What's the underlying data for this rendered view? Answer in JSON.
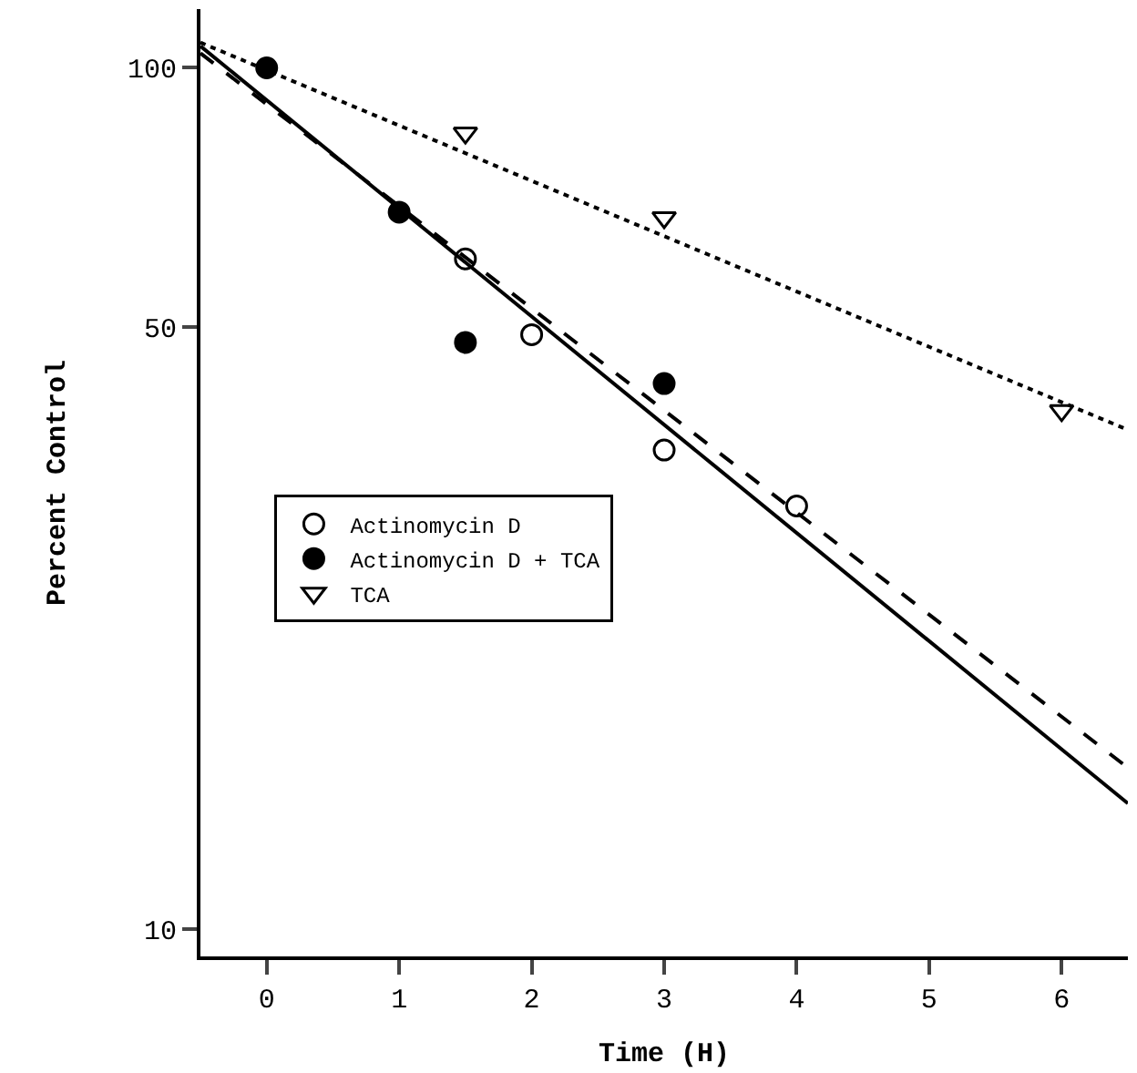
{
  "chart_data": {
    "type": "scatter",
    "xlabel": "Time (H)",
    "ylabel": "Percent Control",
    "log": "y",
    "xlim": [
      -0.5,
      6.5
    ],
    "xticks": [
      0,
      1,
      2,
      3,
      4,
      5,
      6
    ],
    "ylim": [
      9.3,
      117
    ],
    "yticks": [
      10,
      50,
      100
    ],
    "legend": "left",
    "series": [
      {
        "name": "Actinomycin D",
        "color": "#000000",
        "marker": "circle-open",
        "x": [
          1.5,
          2,
          3,
          4
        ],
        "values": [
          60,
          49,
          36,
          31
        ]
      },
      {
        "name": "Actinomycin D + TCA",
        "color": "#000000",
        "marker": "circle",
        "x": [
          0,
          1,
          1.5,
          3
        ],
        "values": [
          100,
          68,
          48,
          43
        ]
      },
      {
        "name": "TCA",
        "color": "#000000",
        "marker": "triangle-down-open",
        "x": [
          1.5,
          3,
          6
        ],
        "values": [
          84,
          67,
          40
        ]
      },
      {
        "type": "line",
        "color": "#000000",
        "line_style": "solid",
        "x": [
          -0.5,
          6.5
        ],
        "values": [
          106,
          14
        ]
      },
      {
        "type": "line",
        "color": "#000000",
        "line_style": "dashed",
        "x": [
          -0.5,
          6.5
        ],
        "values": [
          104,
          15.4
        ]
      },
      {
        "type": "line",
        "color": "#000000",
        "line_style": "dotted",
        "x": [
          -0.5,
          6.5
        ],
        "values": [
          107,
          38
        ]
      }
    ]
  }
}
